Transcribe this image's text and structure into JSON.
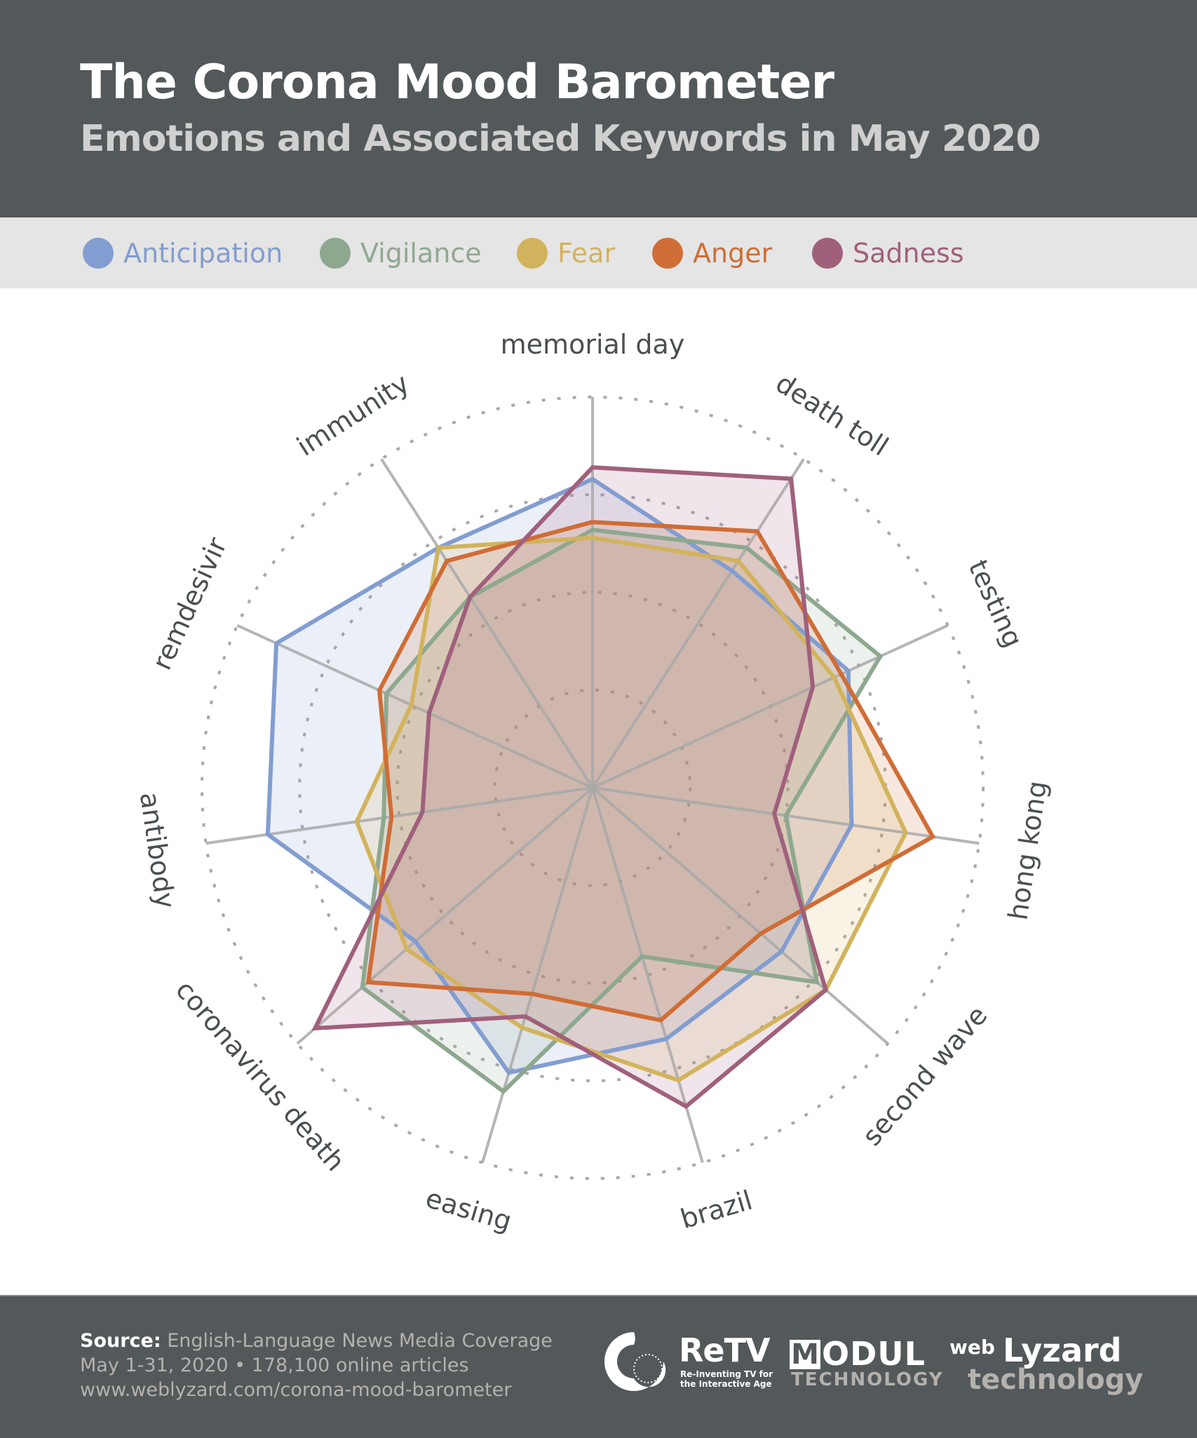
{
  "header": {
    "title": "The Corona Mood Barometer",
    "subtitle": "Emotions and Associated Keywords in May 2020"
  },
  "legend": {
    "items": [
      {
        "label": "Anticipation",
        "color": "#829dd0"
      },
      {
        "label": "Vigilance",
        "color": "#8ea88f"
      },
      {
        "label": "Fear",
        "color": "#d2b35d"
      },
      {
        "label": "Anger",
        "color": "#cf6d36"
      },
      {
        "label": "Sadness",
        "color": "#a0607c"
      }
    ]
  },
  "chart_data": {
    "type": "radar",
    "title": "The Corona Mood Barometer",
    "subtitle": "Emotions and Associated Keywords in May 2020",
    "categories": [
      "memorial day",
      "death toll",
      "testing",
      "hong kong",
      "second wave",
      "brazil",
      "easing",
      "coronavirus death",
      "antibody",
      "remdesivir",
      "immunity"
    ],
    "rlim": [
      0,
      1
    ],
    "grid_rings": [
      0.25,
      0.5,
      0.75,
      1.0
    ],
    "grid": true,
    "legend_position": "top",
    "series": [
      {
        "name": "Anticipation",
        "color": "#829dd0",
        "values": [
          0.79,
          0.66,
          0.72,
          0.67,
          0.64,
          0.67,
          0.76,
          0.6,
          0.84,
          0.89,
          0.73
        ]
      },
      {
        "name": "Vigilance",
        "color": "#8ea88f",
        "values": [
          0.66,
          0.73,
          0.81,
          0.5,
          0.76,
          0.45,
          0.81,
          0.78,
          0.54,
          0.58,
          0.58
        ]
      },
      {
        "name": "Fear",
        "color": "#d2b35d",
        "values": [
          0.64,
          0.69,
          0.68,
          0.81,
          0.79,
          0.78,
          0.64,
          0.63,
          0.61,
          0.51,
          0.73
        ]
      },
      {
        "name": "Anger",
        "color": "#cf6d36",
        "values": [
          0.68,
          0.78,
          0.7,
          0.88,
          0.57,
          0.62,
          0.55,
          0.76,
          0.52,
          0.6,
          0.69
        ]
      },
      {
        "name": "Sadness",
        "color": "#a0607c",
        "values": [
          0.82,
          0.94,
          0.62,
          0.47,
          0.79,
          0.85,
          0.61,
          0.94,
          0.44,
          0.46,
          0.58
        ]
      }
    ]
  },
  "footer": {
    "source_key": "Source:",
    "source_value": "English-Language News Media Coverage",
    "date_line": "May 1-31, 2020 • 178,100 online articles",
    "url_line": "www.weblyzard.com/corona-mood-barometer",
    "logos": {
      "retv": {
        "name": "ReTV",
        "tagline_1": "Re-Inventing TV for",
        "tagline_2": "the Interactive Age"
      },
      "modul": {
        "m": "M",
        "name": "ODUL",
        "sub": "TECHNOLOGY"
      },
      "weblyzard": {
        "web": "web",
        "lyzard": "Lyzard",
        "sub": "technology"
      }
    }
  }
}
